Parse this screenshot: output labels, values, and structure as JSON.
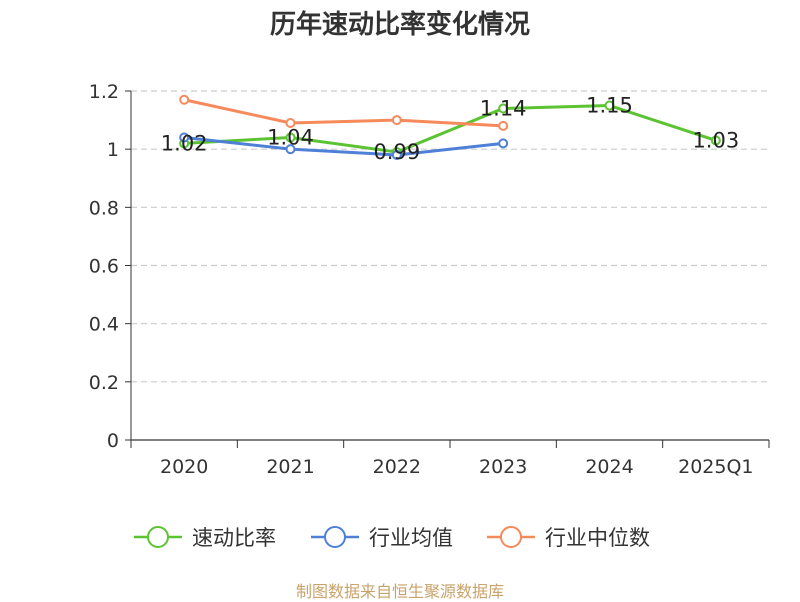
{
  "chart_data": {
    "type": "line",
    "title": "历年速动比率变化情况",
    "categories": [
      "2020",
      "2021",
      "2022",
      "2023",
      "2024",
      "2025Q1"
    ],
    "y_ticks": [
      "0",
      "0.2",
      "0.4",
      "0.6",
      "0.8",
      "1",
      "1.2"
    ],
    "ylim": [
      0,
      1.2
    ],
    "grid": true,
    "legend_position": "bottom",
    "series": [
      {
        "name": "速动比率",
        "color": "#5cc433",
        "values": [
          1.02,
          1.04,
          0.99,
          1.14,
          1.15,
          1.03
        ],
        "data_labels": [
          "1.02",
          "1.04",
          "0.99",
          "1.14",
          "1.15",
          "1.03"
        ]
      },
      {
        "name": "行业均值",
        "color": "#4f80d8",
        "values": [
          1.04,
          1.0,
          0.98,
          1.02,
          null,
          null
        ]
      },
      {
        "name": "行业中位数",
        "color": "#f68a5b",
        "values": [
          1.17,
          1.09,
          1.1,
          1.08,
          null,
          null
        ]
      }
    ]
  },
  "source": "制图数据来自恒生聚源数据库"
}
